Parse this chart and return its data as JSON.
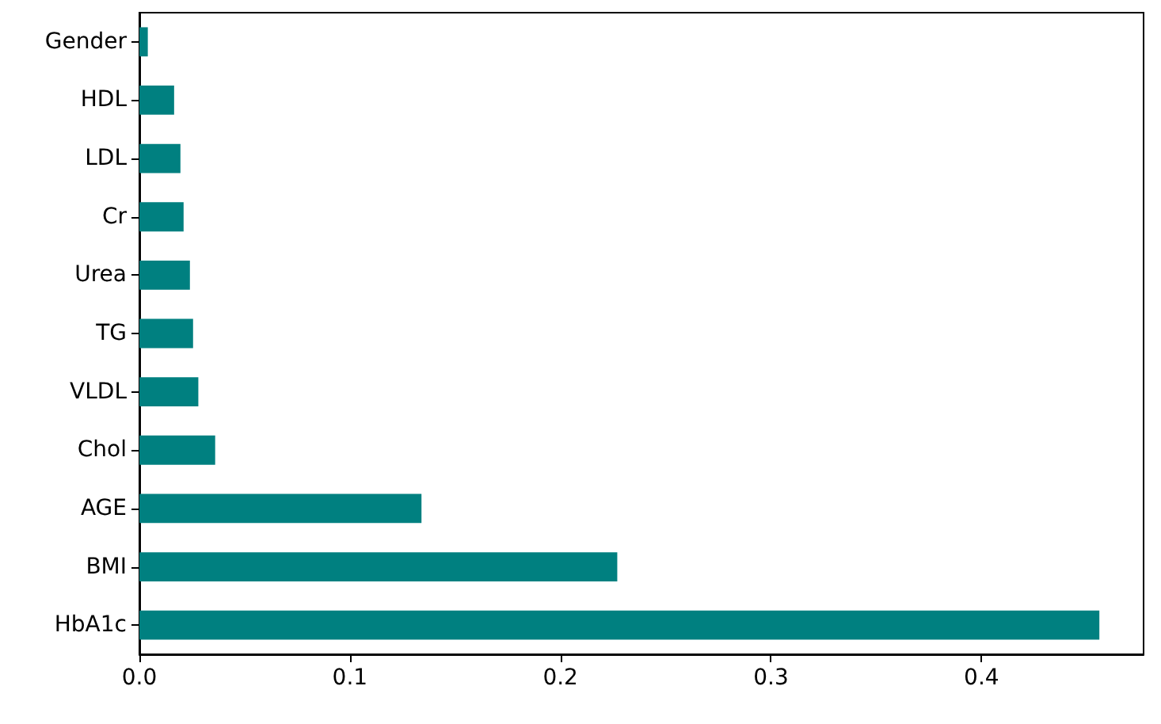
{
  "chart_data": {
    "type": "bar",
    "orientation": "horizontal",
    "categories": [
      "Gender",
      "HDL",
      "LDL",
      "Cr",
      "Urea",
      "TG",
      "VLDL",
      "Chol",
      "AGE",
      "BMI",
      "HbA1c"
    ],
    "values": [
      0.004,
      0.0165,
      0.0195,
      0.021,
      0.024,
      0.0255,
      0.028,
      0.036,
      0.134,
      0.227,
      0.456
    ],
    "color": "#008080",
    "xlim": [
      0,
      0.477
    ],
    "xticks": [
      {
        "value": 0,
        "label": "0.0"
      },
      {
        "value": 0.1,
        "label": "0.1"
      },
      {
        "value": 0.2,
        "label": "0.2"
      },
      {
        "value": 0.3,
        "label": "0.3"
      },
      {
        "value": 0.4,
        "label": "0.4"
      }
    ],
    "grid": false
  }
}
